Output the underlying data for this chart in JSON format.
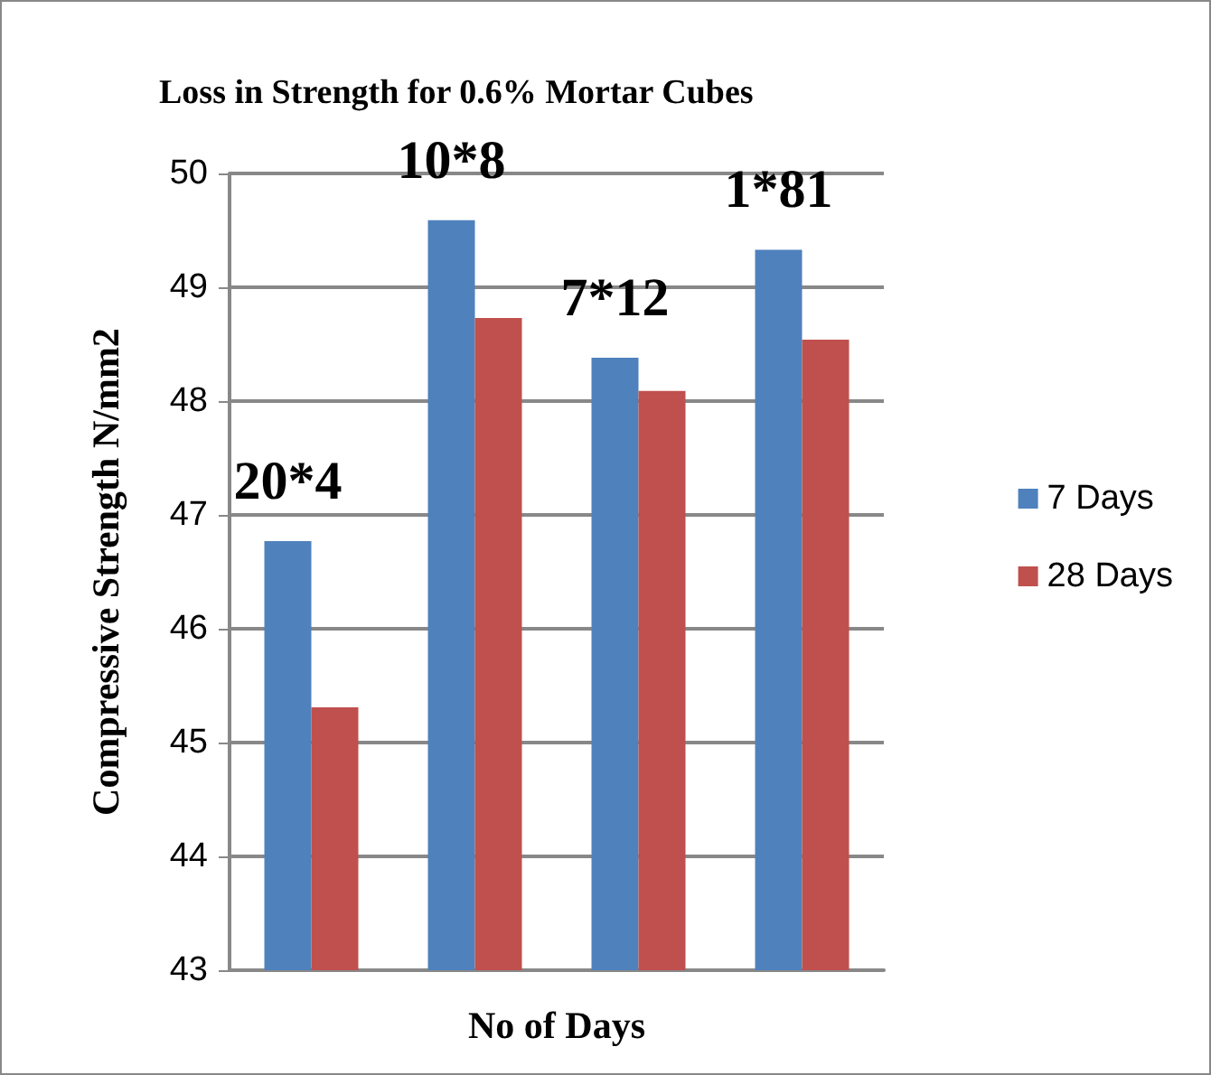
{
  "chart_data": {
    "type": "bar",
    "title": "Loss in Strength for 0.6% Mortar Cubes",
    "xlabel": "No of Days",
    "ylabel": "Compressive Strength N/mm2",
    "categories": [
      null,
      null,
      null,
      null
    ],
    "series": [
      {
        "name": "7 Days",
        "color": "#4f81bd",
        "values": [
          46.77,
          49.59,
          48.38,
          49.33
        ]
      },
      {
        "name": "28 Days",
        "color": "#c0504d",
        "values": [
          45.31,
          48.73,
          48.09,
          48.54
        ]
      }
    ],
    "annotations": [
      "20*4",
      "10*8",
      "7*12",
      "1*81"
    ],
    "ylim": [
      43,
      50
    ],
    "yticks": [
      43,
      44,
      45,
      46,
      47,
      48,
      49,
      50
    ],
    "grid": "y",
    "legend": "right"
  }
}
